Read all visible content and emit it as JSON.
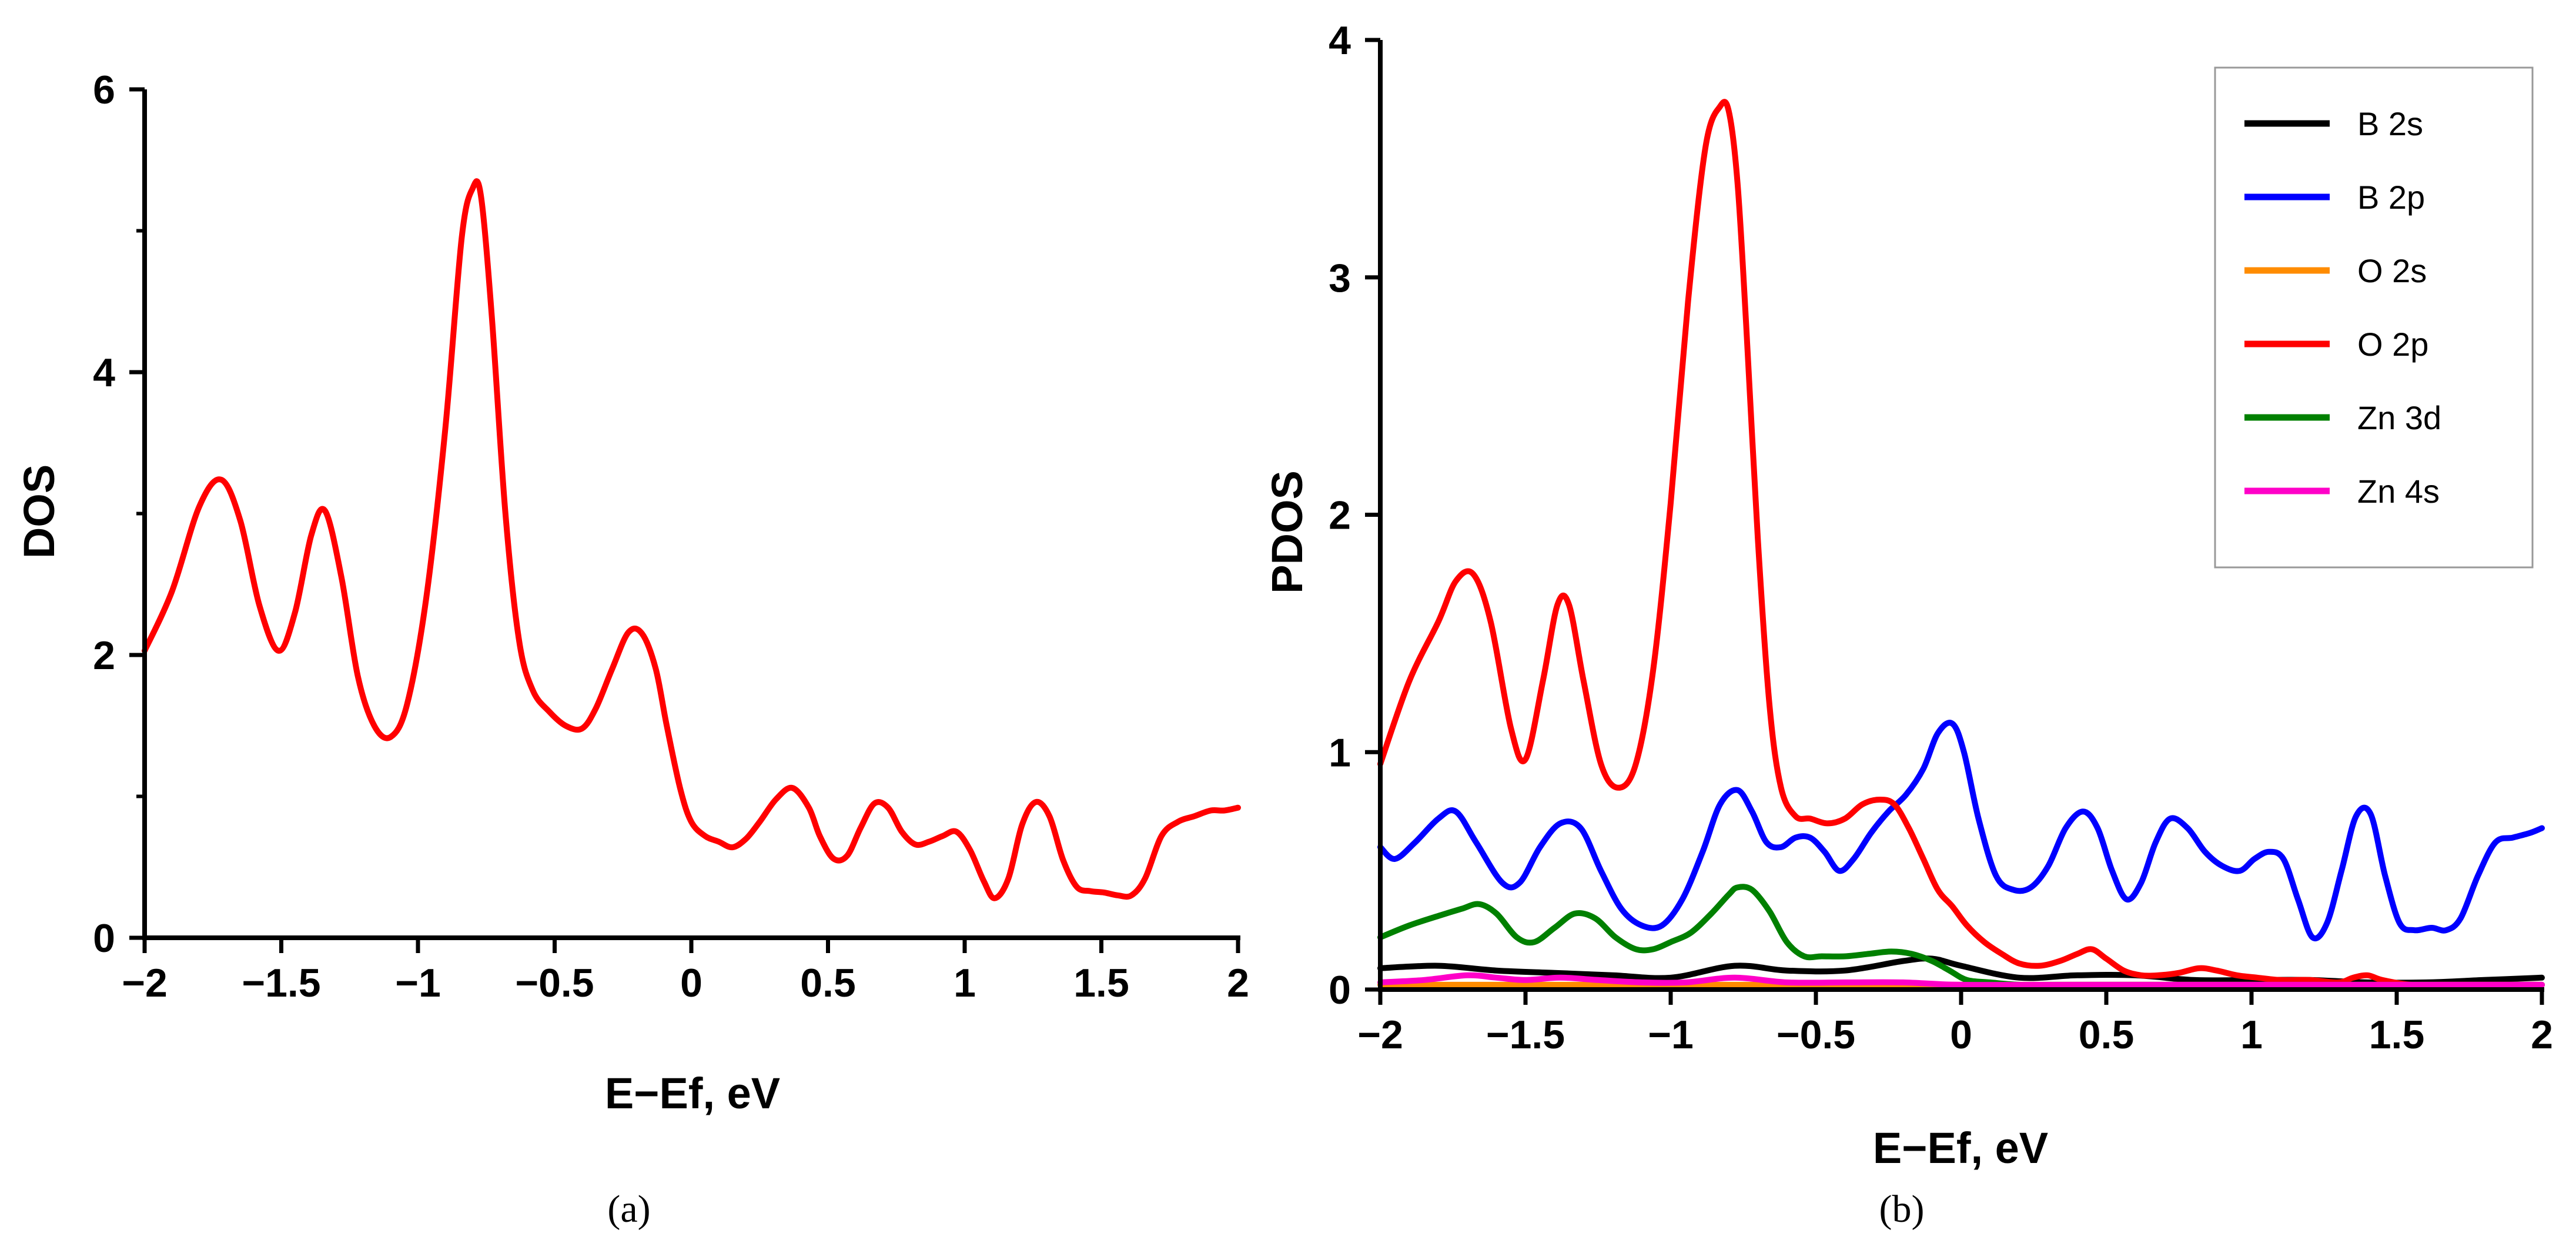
{
  "chart_data": [
    {
      "id": "a",
      "type": "line",
      "panel_label": "(a)",
      "xlabel": "E−Ef, eV",
      "ylabel": "DOS",
      "xlim": [
        -2,
        2
      ],
      "ylim": [
        0,
        6
      ],
      "xticks": [
        -2,
        -1.5,
        -1,
        -0.5,
        0,
        0.5,
        1,
        1.5,
        2
      ],
      "xtick_labels": [
        "−2",
        "−1.5",
        "−1",
        "−0.5",
        "0",
        "0.5",
        "1",
        "1.5",
        "2"
      ],
      "yticks": [
        0,
        2,
        4,
        6
      ],
      "ytick_labels": [
        "0",
        "2",
        "4",
        "6"
      ],
      "series": [
        {
          "name": "DOS",
          "color": "#ff0000",
          "x": [
            -2.0,
            -1.9,
            -1.8,
            -1.72,
            -1.65,
            -1.58,
            -1.51,
            -1.45,
            -1.39,
            -1.34,
            -1.28,
            -1.22,
            -1.16,
            -1.1,
            -1.04,
            -0.97,
            -0.9,
            -0.84,
            -0.8,
            -0.77,
            -0.73,
            -0.68,
            -0.63,
            -0.58,
            -0.52,
            -0.46,
            -0.4,
            -0.35,
            -0.29,
            -0.23,
            -0.18,
            -0.13,
            -0.09,
            -0.04,
            0.0,
            0.05,
            0.1,
            0.15,
            0.2,
            0.25,
            0.31,
            0.37,
            0.43,
            0.47,
            0.52,
            0.57,
            0.62,
            0.67,
            0.72,
            0.77,
            0.82,
            0.87,
            0.92,
            0.97,
            1.02,
            1.07,
            1.11,
            1.16,
            1.21,
            1.26,
            1.31,
            1.36,
            1.41,
            1.46,
            1.51,
            1.56,
            1.61,
            1.66,
            1.72,
            1.78,
            1.84,
            1.9,
            1.95,
            2.0
          ],
          "y": [
            2.03,
            2.45,
            3.05,
            3.24,
            2.95,
            2.35,
            2.03,
            2.3,
            2.85,
            3.02,
            2.55,
            1.85,
            1.5,
            1.42,
            1.65,
            2.4,
            3.6,
            4.95,
            5.3,
            5.25,
            4.4,
            3.0,
            2.1,
            1.75,
            1.6,
            1.5,
            1.48,
            1.62,
            1.9,
            2.16,
            2.15,
            1.9,
            1.5,
            1.05,
            0.82,
            0.72,
            0.68,
            0.64,
            0.7,
            0.82,
            0.98,
            1.06,
            0.92,
            0.72,
            0.56,
            0.58,
            0.78,
            0.95,
            0.92,
            0.75,
            0.66,
            0.68,
            0.72,
            0.75,
            0.62,
            0.4,
            0.28,
            0.42,
            0.8,
            0.96,
            0.86,
            0.55,
            0.36,
            0.33,
            0.32,
            0.3,
            0.3,
            0.42,
            0.72,
            0.82,
            0.86,
            0.9,
            0.9,
            0.92
          ]
        }
      ]
    },
    {
      "id": "b",
      "type": "line",
      "panel_label": "(b)",
      "xlabel": "E−Ef, eV",
      "ylabel": "PDOS",
      "xlim": [
        -2,
        2
      ],
      "ylim": [
        0,
        4
      ],
      "xticks": [
        -2,
        -1.5,
        -1,
        -0.5,
        0,
        0.5,
        1,
        1.5,
        2
      ],
      "xtick_labels": [
        "−2",
        "−1.5",
        "−1",
        "−0.5",
        "0",
        "0.5",
        "1",
        "1.5",
        "2"
      ],
      "yticks": [
        0,
        1,
        2,
        3,
        4
      ],
      "ytick_labels": [
        "0",
        "1",
        "2",
        "3",
        "4"
      ],
      "legend_position": "top-right",
      "series": [
        {
          "name": "B 2s",
          "color": "#000000",
          "x": [
            -2.0,
            -1.8,
            -1.6,
            -1.4,
            -1.2,
            -1.0,
            -0.78,
            -0.6,
            -0.4,
            -0.2,
            -0.1,
            0.0,
            0.2,
            0.4,
            0.6,
            0.8,
            1.0,
            1.2,
            1.4,
            1.6,
            1.8,
            2.0
          ],
          "y": [
            0.09,
            0.1,
            0.08,
            0.07,
            0.06,
            0.05,
            0.1,
            0.08,
            0.08,
            0.12,
            0.13,
            0.1,
            0.05,
            0.06,
            0.06,
            0.04,
            0.04,
            0.04,
            0.03,
            0.03,
            0.04,
            0.05
          ]
        },
        {
          "name": "B 2p",
          "color": "#0000ff",
          "x": [
            -2.0,
            -1.95,
            -1.88,
            -1.8,
            -1.74,
            -1.67,
            -1.58,
            -1.52,
            -1.45,
            -1.38,
            -1.31,
            -1.24,
            -1.17,
            -1.1,
            -1.03,
            -0.96,
            -0.89,
            -0.83,
            -0.77,
            -0.72,
            -0.67,
            -0.62,
            -0.57,
            -0.52,
            -0.47,
            -0.42,
            -0.37,
            -0.31,
            -0.25,
            -0.19,
            -0.13,
            -0.08,
            -0.03,
            0.01,
            0.06,
            0.12,
            0.18,
            0.24,
            0.3,
            0.36,
            0.42,
            0.47,
            0.52,
            0.57,
            0.62,
            0.67,
            0.72,
            0.78,
            0.84,
            0.9,
            0.96,
            1.01,
            1.06,
            1.11,
            1.16,
            1.21,
            1.26,
            1.31,
            1.36,
            1.41,
            1.46,
            1.51,
            1.56,
            1.62,
            1.67,
            1.72,
            1.78,
            1.84,
            1.9,
            1.96,
            2.0
          ],
          "y": [
            0.6,
            0.55,
            0.62,
            0.72,
            0.75,
            0.62,
            0.45,
            0.45,
            0.6,
            0.7,
            0.68,
            0.5,
            0.34,
            0.27,
            0.27,
            0.38,
            0.58,
            0.78,
            0.84,
            0.75,
            0.62,
            0.6,
            0.64,
            0.64,
            0.58,
            0.5,
            0.55,
            0.66,
            0.75,
            0.82,
            0.93,
            1.08,
            1.12,
            1.0,
            0.72,
            0.48,
            0.42,
            0.43,
            0.52,
            0.68,
            0.75,
            0.68,
            0.5,
            0.38,
            0.45,
            0.62,
            0.72,
            0.68,
            0.58,
            0.52,
            0.5,
            0.55,
            0.58,
            0.55,
            0.38,
            0.22,
            0.28,
            0.5,
            0.73,
            0.74,
            0.48,
            0.28,
            0.25,
            0.26,
            0.25,
            0.3,
            0.48,
            0.62,
            0.64,
            0.66,
            0.68
          ]
        },
        {
          "name": "O 2s",
          "color": "#ff8c00",
          "x": [
            -2.0,
            -1.5,
            -1.0,
            -0.5,
            0.0,
            0.5,
            1.0,
            1.5,
            2.0
          ],
          "y": [
            0.02,
            0.02,
            0.02,
            0.02,
            0.02,
            0.02,
            0.02,
            0.02,
            0.02
          ]
        },
        {
          "name": "O 2p",
          "color": "#ff0000",
          "x": [
            -2.0,
            -1.9,
            -1.8,
            -1.74,
            -1.68,
            -1.62,
            -1.55,
            -1.5,
            -1.44,
            -1.39,
            -1.35,
            -1.3,
            -1.24,
            -1.18,
            -1.12,
            -1.06,
            -1.0,
            -0.94,
            -0.88,
            -0.83,
            -0.8,
            -0.77,
            -0.74,
            -0.7,
            -0.66,
            -0.62,
            -0.57,
            -0.52,
            -0.46,
            -0.4,
            -0.34,
            -0.28,
            -0.23,
            -0.18,
            -0.13,
            -0.08,
            -0.03,
            0.02,
            0.08,
            0.14,
            0.2,
            0.27,
            0.34,
            0.4,
            0.45,
            0.5,
            0.56,
            0.62,
            0.68,
            0.75,
            0.82,
            0.88,
            0.95,
            1.02,
            1.1,
            1.2,
            1.3,
            1.35,
            1.4,
            1.45,
            1.55,
            1.65,
            1.75,
            1.85,
            1.95,
            2.0
          ],
          "y": [
            0.95,
            1.3,
            1.55,
            1.72,
            1.75,
            1.55,
            1.1,
            0.97,
            1.3,
            1.62,
            1.62,
            1.3,
            0.95,
            0.85,
            0.95,
            1.35,
            2.05,
            2.9,
            3.55,
            3.72,
            3.7,
            3.4,
            2.8,
            1.9,
            1.2,
            0.85,
            0.73,
            0.72,
            0.7,
            0.72,
            0.78,
            0.8,
            0.78,
            0.68,
            0.55,
            0.42,
            0.35,
            0.27,
            0.2,
            0.15,
            0.11,
            0.1,
            0.12,
            0.15,
            0.17,
            0.13,
            0.08,
            0.06,
            0.06,
            0.07,
            0.09,
            0.08,
            0.06,
            0.05,
            0.04,
            0.04,
            0.03,
            0.05,
            0.06,
            0.04,
            0.02,
            0.02,
            0.02,
            0.02,
            0.02,
            0.02
          ]
        },
        {
          "name": "Zn 3d",
          "color": "#008000",
          "x": [
            -2.0,
            -1.9,
            -1.8,
            -1.72,
            -1.66,
            -1.6,
            -1.53,
            -1.47,
            -1.4,
            -1.33,
            -1.26,
            -1.19,
            -1.12,
            -1.06,
            -1.0,
            -0.93,
            -0.86,
            -0.8,
            -0.77,
            -0.72,
            -0.66,
            -0.6,
            -0.54,
            -0.48,
            -0.4,
            -0.32,
            -0.24,
            -0.17,
            -0.1,
            -0.04,
            0.02,
            0.1,
            0.2,
            0.3,
            0.5,
            0.7,
            1.0,
            1.5,
            2.0
          ],
          "y": [
            0.22,
            0.27,
            0.31,
            0.34,
            0.36,
            0.32,
            0.22,
            0.2,
            0.26,
            0.32,
            0.3,
            0.22,
            0.17,
            0.17,
            0.2,
            0.24,
            0.32,
            0.4,
            0.43,
            0.42,
            0.33,
            0.2,
            0.14,
            0.14,
            0.14,
            0.15,
            0.16,
            0.15,
            0.12,
            0.08,
            0.04,
            0.03,
            0.02,
            0.02,
            0.02,
            0.02,
            0.02,
            0.02,
            0.02
          ]
        },
        {
          "name": "Zn 4s",
          "color": "#ff00c8",
          "x": [
            -2.0,
            -1.85,
            -1.7,
            -1.6,
            -1.5,
            -1.38,
            -1.25,
            -1.1,
            -0.95,
            -0.78,
            -0.6,
            -0.4,
            -0.2,
            0.0,
            0.4,
            0.8,
            1.2,
            1.6,
            2.0
          ],
          "y": [
            0.03,
            0.04,
            0.06,
            0.05,
            0.04,
            0.05,
            0.04,
            0.03,
            0.03,
            0.05,
            0.03,
            0.03,
            0.03,
            0.02,
            0.02,
            0.02,
            0.02,
            0.02,
            0.02
          ]
        }
      ]
    }
  ]
}
